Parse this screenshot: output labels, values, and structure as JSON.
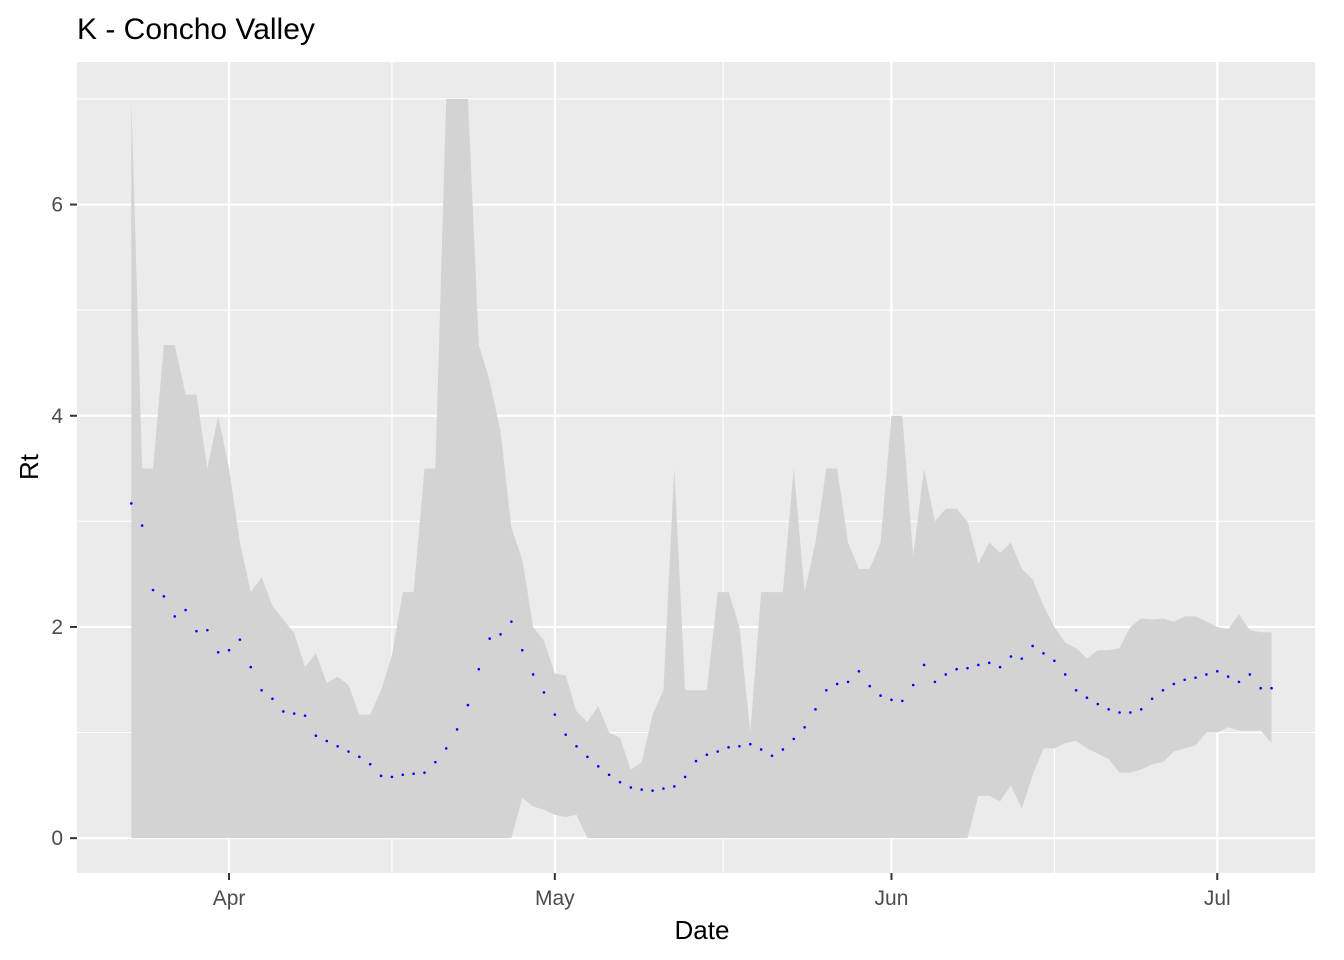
{
  "chart_data": {
    "type": "area",
    "title": "K - Concho Valley",
    "xlabel": "Date",
    "ylabel": "Rt",
    "x_ticks": [
      "Apr",
      "May",
      "Jun",
      "Jul"
    ],
    "x_tick_dates": [
      "2020-04-01",
      "2020-05-01",
      "2020-06-01",
      "2020-07-01"
    ],
    "y_ticks": [
      "0",
      "2",
      "4",
      "6"
    ],
    "y_tick_values": [
      0,
      2,
      4,
      6
    ],
    "xlim": [
      "2020-03-18",
      "2020-07-10"
    ],
    "ylim": [
      -0.33,
      7.35
    ],
    "grid": true,
    "legend": "none",
    "colors": {
      "panel": "#ebebeb",
      "grid": "#ffffff",
      "ribbon": "#d3d3d3",
      "points": "#0000ff"
    },
    "series": [
      {
        "x": [
          "2020-03-23",
          "2020-03-24",
          "2020-03-25",
          "2020-03-26",
          "2020-03-27",
          "2020-03-28",
          "2020-03-29",
          "2020-03-30",
          "2020-03-31",
          "2020-04-01",
          "2020-04-02",
          "2020-04-03",
          "2020-04-04",
          "2020-04-05",
          "2020-04-06",
          "2020-04-07",
          "2020-04-08",
          "2020-04-09",
          "2020-04-10",
          "2020-04-11",
          "2020-04-12",
          "2020-04-13",
          "2020-04-14",
          "2020-04-15",
          "2020-04-16",
          "2020-04-17",
          "2020-04-18",
          "2020-04-19",
          "2020-04-20",
          "2020-04-21",
          "2020-04-22",
          "2020-04-23",
          "2020-04-24",
          "2020-04-25",
          "2020-04-26",
          "2020-04-27",
          "2020-04-28",
          "2020-04-29",
          "2020-04-30",
          "2020-05-01",
          "2020-05-02",
          "2020-05-03",
          "2020-05-04",
          "2020-05-05",
          "2020-05-06",
          "2020-05-07",
          "2020-05-08",
          "2020-05-09",
          "2020-05-10",
          "2020-05-11",
          "2020-05-12",
          "2020-05-13",
          "2020-05-14",
          "2020-05-15",
          "2020-05-16",
          "2020-05-17",
          "2020-05-18",
          "2020-05-19",
          "2020-05-20",
          "2020-05-21",
          "2020-05-22",
          "2020-05-23",
          "2020-05-24",
          "2020-05-25",
          "2020-05-26",
          "2020-05-27",
          "2020-05-28",
          "2020-05-29",
          "2020-05-30",
          "2020-05-31",
          "2020-06-01",
          "2020-06-02",
          "2020-06-03",
          "2020-06-04",
          "2020-06-05",
          "2020-06-06",
          "2020-06-07",
          "2020-06-08",
          "2020-06-09",
          "2020-06-10",
          "2020-06-11",
          "2020-06-12",
          "2020-06-13",
          "2020-06-14",
          "2020-06-15",
          "2020-06-16",
          "2020-06-17",
          "2020-06-18",
          "2020-06-19",
          "2020-06-20",
          "2020-06-21",
          "2020-06-22",
          "2020-06-23",
          "2020-06-24",
          "2020-06-25",
          "2020-06-26",
          "2020-06-27",
          "2020-06-28",
          "2020-06-29",
          "2020-06-30",
          "2020-07-01",
          "2020-07-02",
          "2020-07-03",
          "2020-07-04",
          "2020-07-05",
          "2020-07-06"
        ],
        "rt": [
          3.17,
          2.96,
          2.35,
          2.29,
          2.1,
          2.16,
          1.96,
          1.97,
          1.76,
          1.78,
          1.88,
          1.62,
          1.4,
          1.32,
          1.2,
          1.18,
          1.16,
          0.97,
          0.92,
          0.87,
          0.82,
          0.77,
          0.7,
          0.59,
          0.58,
          0.6,
          0.61,
          0.62,
          0.72,
          0.85,
          1.03,
          1.26,
          1.6,
          1.89,
          1.93,
          2.05,
          1.78,
          1.55,
          1.38,
          1.17,
          0.98,
          0.87,
          0.77,
          0.68,
          0.6,
          0.53,
          0.48,
          0.46,
          0.45,
          0.47,
          0.49,
          0.58,
          0.73,
          0.79,
          0.82,
          0.86,
          0.87,
          0.89,
          0.84,
          0.78,
          0.84,
          0.94,
          1.05,
          1.22,
          1.4,
          1.46,
          1.48,
          1.58,
          1.44,
          1.35,
          1.31,
          1.3,
          1.45,
          1.64,
          1.48,
          1.55,
          1.6,
          1.61,
          1.64,
          1.66,
          1.62,
          1.72,
          1.7,
          1.82,
          1.75,
          1.68,
          1.55,
          1.4,
          1.33,
          1.27,
          1.22,
          1.19,
          1.19,
          1.22,
          1.32,
          1.4,
          1.46,
          1.5,
          1.52,
          1.55,
          1.58,
          1.53,
          1.48,
          1.55,
          1.42,
          1.42
        ],
        "lower": [
          0,
          0,
          0,
          0,
          0,
          0,
          0,
          0,
          0,
          0,
          0,
          0,
          0,
          0,
          0,
          0,
          0,
          0,
          0,
          0,
          0,
          0,
          0,
          0,
          0,
          0,
          0,
          0,
          0,
          0,
          0,
          0,
          0,
          0,
          0,
          0,
          0.38,
          0.3,
          0.27,
          0.22,
          0.2,
          0.22,
          0.0,
          0,
          0,
          0,
          0,
          0,
          0,
          0,
          0,
          0,
          0,
          0,
          0,
          0,
          0,
          0,
          0,
          0,
          0,
          0,
          0,
          0,
          0,
          0,
          0,
          0,
          0,
          0,
          0,
          0,
          0,
          0,
          0,
          0,
          0,
          0,
          0.4,
          0.4,
          0.35,
          0.5,
          0.28,
          0.6,
          0.85,
          0.85,
          0.9,
          0.92,
          0.85,
          0.8,
          0.75,
          0.62,
          0.62,
          0.65,
          0.7,
          0.72,
          0.82,
          0.85,
          0.88,
          1.0,
          1.0,
          1.05,
          1.02,
          1.02,
          1.02,
          0.9
        ],
        "upper": [
          7.0,
          3.5,
          3.5,
          4.67,
          4.67,
          4.2,
          4.2,
          3.5,
          4.0,
          3.5,
          2.8,
          2.33,
          2.47,
          2.2,
          2.07,
          1.94,
          1.62,
          1.75,
          1.47,
          1.53,
          1.45,
          1.17,
          1.17,
          1.4,
          1.73,
          2.33,
          2.33,
          3.5,
          3.5,
          7.0,
          7.0,
          7.0,
          4.67,
          4.33,
          3.85,
          2.94,
          2.64,
          2.0,
          1.87,
          1.56,
          1.54,
          1.2,
          1.1,
          1.25,
          1.0,
          0.95,
          0.65,
          0.72,
          1.17,
          1.4,
          3.5,
          1.4,
          1.4,
          1.4,
          2.33,
          2.33,
          2.0,
          1.0,
          2.33,
          2.33,
          2.33,
          3.5,
          2.33,
          2.8,
          3.5,
          3.5,
          2.8,
          2.55,
          2.55,
          2.8,
          4.0,
          4.0,
          2.67,
          3.5,
          3.0,
          3.12,
          3.12,
          3.0,
          2.6,
          2.8,
          2.7,
          2.8,
          2.55,
          2.45,
          2.2,
          2.0,
          1.85,
          1.8,
          1.7,
          1.78,
          1.78,
          1.8,
          2.0,
          2.08,
          2.07,
          2.08,
          2.05,
          2.1,
          2.1,
          2.05,
          2.0,
          1.98,
          2.12,
          1.97,
          1.95,
          1.95
        ]
      }
    ]
  }
}
